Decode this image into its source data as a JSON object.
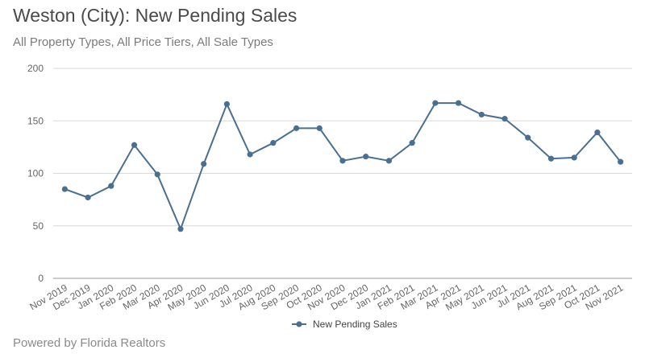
{
  "title": "Weston (City): New Pending Sales",
  "subtitle": "All Property Types, All Price Tiers, All Sale Types",
  "footer": "Powered by Florida Realtors",
  "colors": {
    "series": "#4a6f91",
    "grid": "#d9d9d9",
    "axis": "#9a9a9a"
  },
  "chart_data": {
    "type": "line",
    "title": "Weston (City): New Pending Sales",
    "xlabel": "",
    "ylabel": "",
    "ylim": [
      0,
      200
    ],
    "yticks": [
      0,
      50,
      100,
      150,
      200
    ],
    "grid": true,
    "legend_position": "bottom-center",
    "categories": [
      "Nov 2019",
      "Dec 2019",
      "Jan 2020",
      "Feb 2020",
      "Mar 2020",
      "Apr 2020",
      "May 2020",
      "Jun 2020",
      "Jul 2020",
      "Aug 2020",
      "Sep 2020",
      "Oct 2020",
      "Nov 2020",
      "Dec 2020",
      "Jan 2021",
      "Feb 2021",
      "Mar 2021",
      "Apr 2021",
      "May 2021",
      "Jun 2021",
      "Jul 2021",
      "Aug 2021",
      "Sep 2021",
      "Oct 2021",
      "Nov 2021"
    ],
    "series": [
      {
        "name": "New Pending Sales",
        "values": [
          85,
          77,
          88,
          127,
          99,
          47,
          109,
          166,
          118,
          129,
          143,
          143,
          112,
          116,
          112,
          129,
          167,
          167,
          156,
          152,
          134,
          114,
          115,
          139,
          111
        ]
      }
    ]
  }
}
